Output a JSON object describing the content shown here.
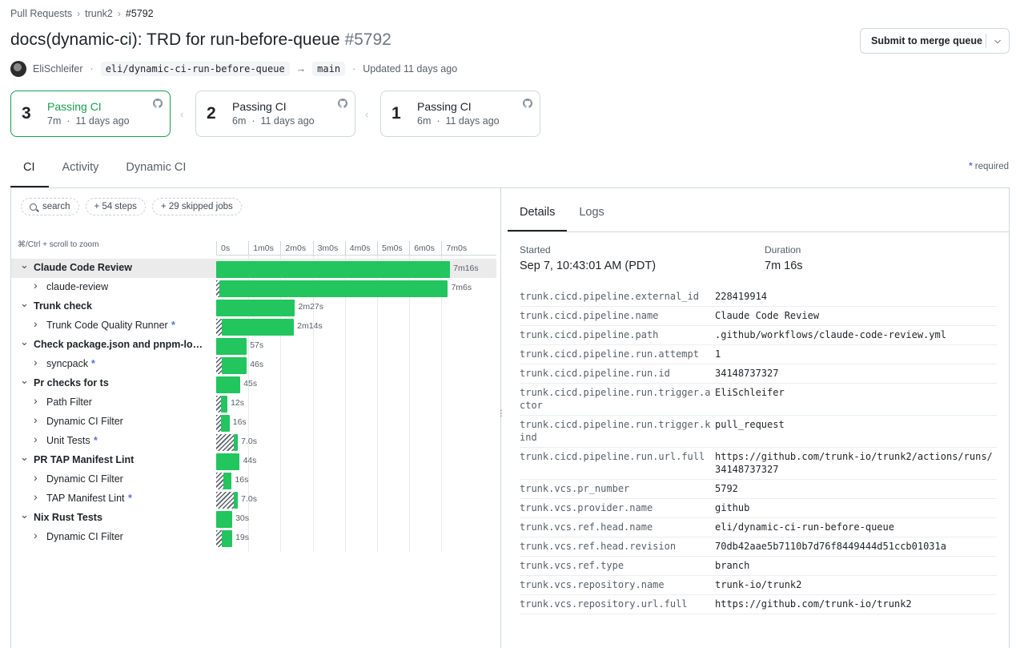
{
  "breadcrumb": {
    "root": "Pull Requests",
    "repo": "trunk2",
    "pr": "#5792"
  },
  "header": {
    "title": "docs(dynamic-ci): TRD for run-before-queue",
    "number": "#5792"
  },
  "merge_button": {
    "label": "Submit to merge queue"
  },
  "meta": {
    "author": "EliSchleifer",
    "head_branch": "eli/dynamic-ci-run-before-queue",
    "base_branch": "main",
    "updated": "Updated 11 days ago"
  },
  "runs": [
    {
      "number": "3",
      "status": "Passing CI",
      "duration": "7m",
      "age": "11 days ago"
    },
    {
      "number": "2",
      "status": "Passing CI",
      "duration": "6m",
      "age": "11 days ago"
    },
    {
      "number": "1",
      "status": "Passing CI",
      "duration": "6m",
      "age": "11 days ago"
    }
  ],
  "tabs": [
    "CI",
    "Activity",
    "Dynamic CI"
  ],
  "required_legend": {
    "symbol": "*",
    "label": "required"
  },
  "filters": {
    "search": "search",
    "steps": "+ 54 steps",
    "skipped": "+ 29 skipped jobs"
  },
  "zoom_hint": "⌘/Ctrl + scroll to zoom",
  "timeline": {
    "ticks": [
      "0s",
      "1m0s",
      "2m0s",
      "3m0s",
      "4m0s",
      "5m0s",
      "6m0s",
      "7m0s"
    ],
    "rows": [
      {
        "name": "Claude Code Review",
        "type": "group",
        "duration": "7m16s",
        "start_s": 0,
        "dur_s": 436,
        "hatch_s": 0,
        "required": false,
        "highlight": true
      },
      {
        "name": "claude-review",
        "type": "child",
        "duration": "7m6s",
        "start_s": 0,
        "dur_s": 426,
        "hatch_s": 6,
        "required": false
      },
      {
        "name": "Trunk check",
        "type": "group",
        "duration": "2m27s",
        "start_s": 0,
        "dur_s": 147,
        "hatch_s": 0,
        "required": false
      },
      {
        "name": "Trunk Code Quality Runner",
        "type": "child",
        "duration": "2m14s",
        "start_s": 0,
        "dur_s": 134,
        "hatch_s": 11,
        "required": true
      },
      {
        "name": "Check package.json and pnpm-lock.yaml",
        "type": "group",
        "duration": "57s",
        "start_s": 0,
        "dur_s": 57,
        "hatch_s": 0,
        "required": false
      },
      {
        "name": "syncpack",
        "type": "child",
        "duration": "46s",
        "start_s": 0,
        "dur_s": 46,
        "hatch_s": 11,
        "required": true
      },
      {
        "name": "Pr checks for ts",
        "type": "group",
        "duration": "45s",
        "start_s": 0,
        "dur_s": 45,
        "hatch_s": 0,
        "required": false
      },
      {
        "name": "Path Filter",
        "type": "child",
        "duration": "12s",
        "start_s": 0,
        "dur_s": 12,
        "hatch_s": 9,
        "required": false
      },
      {
        "name": "Dynamic CI Filter",
        "type": "child",
        "duration": "16s",
        "start_s": 0,
        "dur_s": 16,
        "hatch_s": 9,
        "required": false
      },
      {
        "name": "Unit Tests",
        "type": "child",
        "duration": "7.0s",
        "start_s": 0,
        "dur_s": 7,
        "hatch_s": 33,
        "required": true
      },
      {
        "name": "PR TAP Manifest Lint",
        "type": "group",
        "duration": "44s",
        "start_s": 0,
        "dur_s": 44,
        "hatch_s": 0,
        "required": false
      },
      {
        "name": "Dynamic CI Filter",
        "type": "child",
        "duration": "16s",
        "start_s": 0,
        "dur_s": 16,
        "hatch_s": 13,
        "required": false
      },
      {
        "name": "TAP Manifest Lint",
        "type": "child",
        "duration": "7.0s",
        "start_s": 0,
        "dur_s": 7,
        "hatch_s": 33,
        "required": true
      },
      {
        "name": "Nix Rust Tests",
        "type": "group",
        "duration": "30s",
        "start_s": 0,
        "dur_s": 30,
        "hatch_s": 0,
        "required": false
      },
      {
        "name": "Dynamic CI Filter",
        "type": "child",
        "duration": "19s",
        "start_s": 0,
        "dur_s": 19,
        "hatch_s": 11,
        "required": false
      }
    ]
  },
  "details": {
    "tabs": [
      "Details",
      "Logs"
    ],
    "started_label": "Started",
    "started_value": "Sep 7, 10:43:01 AM (PDT)",
    "duration_label": "Duration",
    "duration_value": "7m 16s",
    "attributes": [
      {
        "key": "trunk.cicd.pipeline.external_id",
        "value": "228419914"
      },
      {
        "key": "trunk.cicd.pipeline.name",
        "value": "Claude Code Review"
      },
      {
        "key": "trunk.cicd.pipeline.path",
        "value": ".github/workflows/claude-code-review.yml"
      },
      {
        "key": "trunk.cicd.pipeline.run.attempt",
        "value": "1"
      },
      {
        "key": "trunk.cicd.pipeline.run.id",
        "value": "34148737327"
      },
      {
        "key": "trunk.cicd.pipeline.run.trigger.actor",
        "value": "EliSchleifer"
      },
      {
        "key": "trunk.cicd.pipeline.run.trigger.kind",
        "value": "pull_request"
      },
      {
        "key": "trunk.cicd.pipeline.run.url.full",
        "value": "https://github.com/trunk-io/trunk2/actions/runs/34148737327"
      },
      {
        "key": "trunk.vcs.pr_number",
        "value": "5792"
      },
      {
        "key": "trunk.vcs.provider.name",
        "value": "github"
      },
      {
        "key": "trunk.vcs.ref.head.name",
        "value": "eli/dynamic-ci-run-before-queue"
      },
      {
        "key": "trunk.vcs.ref.head.revision",
        "value": "70db42aae5b7110b7d76f8449444d51ccb01031a"
      },
      {
        "key": "trunk.vcs.ref.type",
        "value": "branch"
      },
      {
        "key": "trunk.vcs.repository.name",
        "value": "trunk-io/trunk2"
      },
      {
        "key": "trunk.vcs.repository.url.full",
        "value": "https://github.com/trunk-io/trunk2"
      }
    ]
  },
  "colors": {
    "success": "#22c55e",
    "accent_green": "#1a9e50",
    "required": "#5b6ee1"
  }
}
